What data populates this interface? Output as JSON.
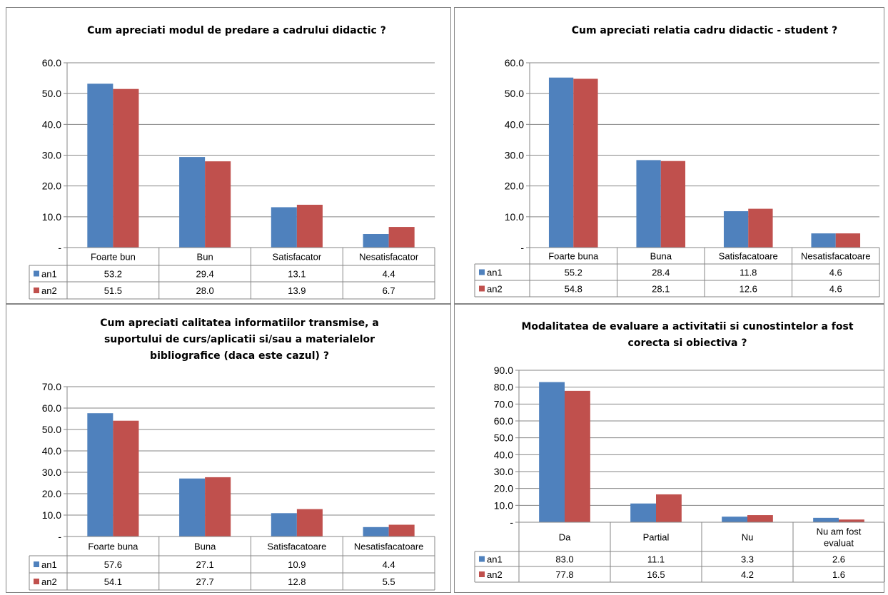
{
  "series_colors": {
    "an1": "#4f81bd",
    "an2": "#c0504d"
  },
  "chart_data": [
    {
      "type": "bar",
      "title": [
        "Cum apreciati modul de predare a cadrului didactic ?"
      ],
      "categories": [
        [
          "Foarte bun"
        ],
        [
          "Bun"
        ],
        [
          "Satisfacator"
        ],
        [
          "Nesatisfacator"
        ]
      ],
      "series": [
        {
          "name": "an1",
          "labels": [
            "53.2",
            "29.4",
            "13.1",
            "4.4"
          ],
          "values": [
            53.2,
            29.4,
            13.1,
            4.4
          ]
        },
        {
          "name": "an2",
          "labels": [
            "51.5",
            "28.0",
            "13.9",
            "6.7"
          ],
          "values": [
            51.5,
            28.0,
            13.9,
            6.7
          ]
        }
      ],
      "yticks": [
        "-",
        "10.0",
        "20.0",
        "30.0",
        "40.0",
        "50.0",
        "60.0"
      ],
      "ylim": [
        0,
        60
      ],
      "grid": true,
      "legend": "data-table"
    },
    {
      "type": "bar",
      "title": [
        "Cum apreciati relatia cadru didactic - student ?"
      ],
      "categories": [
        [
          "Foarte buna"
        ],
        [
          "Buna"
        ],
        [
          "Satisfacatoare"
        ],
        [
          "Nesatisfacatoare"
        ]
      ],
      "series": [
        {
          "name": "an1",
          "labels": [
            "55.2",
            "28.4",
            "11.8",
            "4.6"
          ],
          "values": [
            55.2,
            28.4,
            11.8,
            4.6
          ]
        },
        {
          "name": "an2",
          "labels": [
            "54.8",
            "28.1",
            "12.6",
            "4.6"
          ],
          "values": [
            54.8,
            28.1,
            12.6,
            4.6
          ]
        }
      ],
      "yticks": [
        "-",
        "10.0",
        "20.0",
        "30.0",
        "40.0",
        "50.0",
        "60.0"
      ],
      "ylim": [
        0,
        60
      ],
      "grid": true,
      "legend": "data-table"
    },
    {
      "type": "bar",
      "title": [
        "Cum apreciati calitatea informatiilor transmise, a",
        "suportului de curs/aplicatii si/sau a materialelor",
        "bibliografice (daca este cazul) ?"
      ],
      "categories": [
        [
          "Foarte buna"
        ],
        [
          "Buna"
        ],
        [
          "Satisfacatoare"
        ],
        [
          "Nesatisfacatoare"
        ]
      ],
      "series": [
        {
          "name": "an1",
          "labels": [
            "57.6",
            "27.1",
            "10.9",
            "4.4"
          ],
          "values": [
            57.6,
            27.1,
            10.9,
            4.4
          ]
        },
        {
          "name": "an2",
          "labels": [
            "54.1",
            "27.7",
            "12.8",
            "5.5"
          ],
          "values": [
            54.1,
            27.7,
            12.8,
            5.5
          ]
        }
      ],
      "yticks": [
        "-",
        "10.0",
        "20.0",
        "30.0",
        "40.0",
        "50.0",
        "60.0",
        "70.0"
      ],
      "ylim": [
        0,
        70
      ],
      "grid": true,
      "legend": "data-table"
    },
    {
      "type": "bar",
      "title": [
        "Modalitatea de evaluare a activitatii si cunostintelor a fost",
        "corecta si obiectiva ?"
      ],
      "categories": [
        [
          "Da"
        ],
        [
          "Partial"
        ],
        [
          "Nu"
        ],
        [
          "Nu am fost",
          "evaluat"
        ]
      ],
      "series": [
        {
          "name": "an1",
          "labels": [
            "83.0",
            "11.1",
            "3.3",
            "2.6"
          ],
          "values": [
            83.0,
            11.1,
            3.3,
            2.6
          ]
        },
        {
          "name": "an2",
          "labels": [
            "77.8",
            "16.5",
            "4.2",
            "1.6"
          ],
          "values": [
            77.8,
            16.5,
            4.2,
            1.6
          ]
        }
      ],
      "yticks": [
        "-",
        "10.0",
        "20.0",
        "30.0",
        "40.0",
        "50.0",
        "60.0",
        "70.0",
        "80.0",
        "90.0"
      ],
      "ylim": [
        0,
        90
      ],
      "grid": true,
      "legend": "data-table"
    }
  ]
}
